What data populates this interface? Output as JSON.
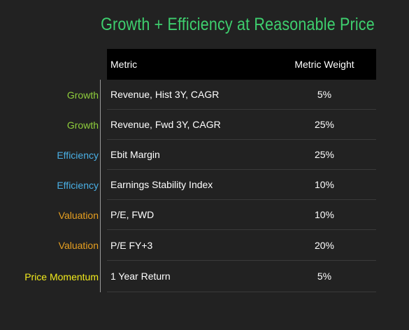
{
  "title": "Growth + Efficiency at Reasonable Price",
  "colors": {
    "background": "#222222",
    "title": "#3ecf6e",
    "header_bg": "#000000",
    "Growth": "#8fce3c",
    "Efficiency": "#4ab0e6",
    "Valuation": "#e8a020",
    "Price Momentum": "#f2ea1c"
  },
  "table": {
    "headers": [
      "Metric",
      "Metric Weight"
    ],
    "rows": [
      {
        "category": "Growth",
        "metric": "Revenue, Hist 3Y, CAGR",
        "weight": "5%"
      },
      {
        "category": "Growth",
        "metric": "Revenue, Fwd 3Y, CAGR",
        "weight": "25%"
      },
      {
        "category": "Efficiency",
        "metric": "Ebit Margin",
        "weight": "25%"
      },
      {
        "category": "Efficiency",
        "metric": "Earnings Stability Index",
        "weight": "10%"
      },
      {
        "category": "Valuation",
        "metric": "P/E, FWD",
        "weight": "10%"
      },
      {
        "category": "Valuation",
        "metric": "P/E FY+3",
        "weight": "20%"
      },
      {
        "category": "Price Momentum",
        "metric": "1 Year Return",
        "weight": "5%"
      }
    ]
  }
}
